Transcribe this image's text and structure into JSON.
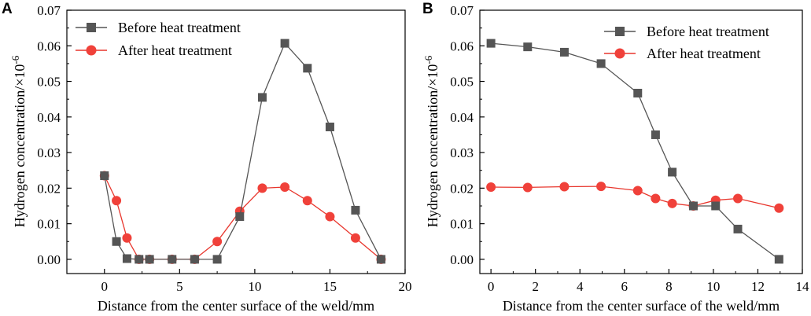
{
  "figure": {
    "background": "#ffffff"
  },
  "chart_data": [
    {
      "panel": "A",
      "type": "line",
      "xlabel": "Distance from the center surface of the weld/mm",
      "ylabel": "Hydrogen concentration/×10",
      "ylabel_exponent": "-6",
      "xlim": [
        -2.5,
        20
      ],
      "ylim": [
        -0.004,
        0.07
      ],
      "xticks": [
        0,
        5,
        10,
        15,
        20
      ],
      "yticks": [
        0.0,
        0.01,
        0.02,
        0.03,
        0.04,
        0.05,
        0.06,
        0.07
      ],
      "ytick_labels": [
        "0.00",
        "0.01",
        "0.02",
        "0.03",
        "0.04",
        "0.05",
        "0.06",
        "0.07"
      ],
      "legend_position": "top-left",
      "series": [
        {
          "name": "Before heat treatment",
          "marker": "square",
          "line_color": "#555555",
          "marker_color": "#555555",
          "x": [
            0,
            0.8,
            1.5,
            2.3,
            3.0,
            4.5,
            6.0,
            7.5,
            9.0,
            10.5,
            12.0,
            13.5,
            15.0,
            16.7,
            18.4
          ],
          "y": [
            0.0235,
            0.005,
            0.0002,
            0.0,
            0.0,
            0.0,
            0.0,
            0.0,
            0.012,
            0.0455,
            0.0607,
            0.0537,
            0.0372,
            0.0138,
            0.0
          ]
        },
        {
          "name": "After heat treatment",
          "marker": "circle",
          "line_color": "#e8362d",
          "marker_color": "#f0413a",
          "x": [
            0,
            0.8,
            1.5,
            2.3,
            3.0,
            4.5,
            6.0,
            7.5,
            9.0,
            10.5,
            12.0,
            13.5,
            15.0,
            16.7,
            18.4
          ],
          "y": [
            0.0235,
            0.0165,
            0.006,
            0.0,
            0.0,
            0.0,
            0.0,
            0.005,
            0.0135,
            0.02,
            0.0203,
            0.0165,
            0.012,
            0.006,
            0.0
          ]
        }
      ]
    },
    {
      "panel": "B",
      "type": "line",
      "xlabel": "Distance from the center surface of the weld/mm",
      "ylabel": "Hydrogen concentration/×10",
      "ylabel_exponent": "-6",
      "xlim": [
        -0.5,
        14
      ],
      "ylim": [
        -0.004,
        0.07
      ],
      "xticks": [
        0,
        2,
        4,
        6,
        8,
        10,
        12,
        14
      ],
      "yticks": [
        0.0,
        0.01,
        0.02,
        0.03,
        0.04,
        0.05,
        0.06,
        0.07
      ],
      "ytick_labels": [
        "0.00",
        "0.01",
        "0.02",
        "0.03",
        "0.04",
        "0.05",
        "0.06",
        "0.07"
      ],
      "legend_position": "top-right",
      "series": [
        {
          "name": "Before heat treatment",
          "marker": "square",
          "line_color": "#555555",
          "marker_color": "#555555",
          "x": [
            0,
            1.65,
            3.3,
            4.95,
            6.6,
            7.4,
            8.15,
            9.1,
            10.1,
            11.1,
            12.95
          ],
          "y": [
            0.0607,
            0.0597,
            0.0582,
            0.055,
            0.0467,
            0.035,
            0.0245,
            0.015,
            0.015,
            0.0085,
            0.0
          ]
        },
        {
          "name": "After heat treatment",
          "marker": "circle",
          "line_color": "#e8362d",
          "marker_color": "#f0413a",
          "x": [
            0,
            1.65,
            3.3,
            4.95,
            6.6,
            7.4,
            8.15,
            9.1,
            10.1,
            11.1,
            12.95
          ],
          "y": [
            0.0203,
            0.0202,
            0.0204,
            0.0205,
            0.0193,
            0.0171,
            0.0157,
            0.015,
            0.0166,
            0.0171,
            0.0144
          ]
        }
      ]
    }
  ]
}
